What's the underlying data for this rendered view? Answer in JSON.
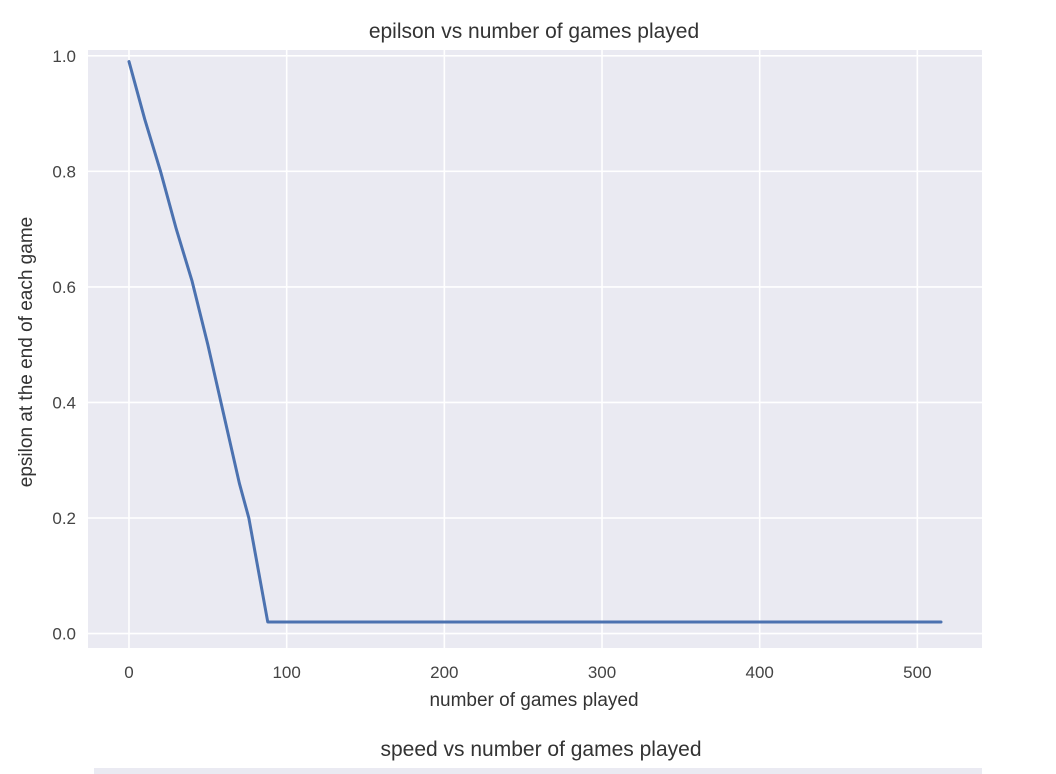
{
  "chart_data": [
    {
      "type": "line",
      "title": "epilson vs number of games played",
      "xlabel": "number of games played",
      "ylabel": "epsilon at the end of each game",
      "xlim": [
        -26,
        541
      ],
      "ylim": [
        -0.025,
        1.01
      ],
      "xticks": [
        0,
        100,
        200,
        300,
        400,
        500
      ],
      "yticks": [
        0.0,
        0.2,
        0.4,
        0.6,
        0.8,
        1.0
      ],
      "xtick_labels": [
        "0",
        "100",
        "200",
        "300",
        "400",
        "500"
      ],
      "ytick_labels": [
        "0.0",
        "0.2",
        "0.4",
        "0.6",
        "0.8",
        "1.0"
      ],
      "grid": true,
      "background": "#EAEAF2",
      "series": [
        {
          "color": "#4C72B0",
          "x": [
            0,
            10,
            20,
            30,
            40,
            50,
            60,
            70,
            76,
            80,
            88,
            100,
            200,
            300,
            400,
            515
          ],
          "y": [
            0.99,
            0.89,
            0.8,
            0.7,
            0.61,
            0.5,
            0.38,
            0.26,
            0.2,
            0.14,
            0.02,
            0.02,
            0.02,
            0.02,
            0.02,
            0.02
          ]
        }
      ]
    },
    {
      "type": "line",
      "title": "speed vs number of games played"
    }
  ]
}
